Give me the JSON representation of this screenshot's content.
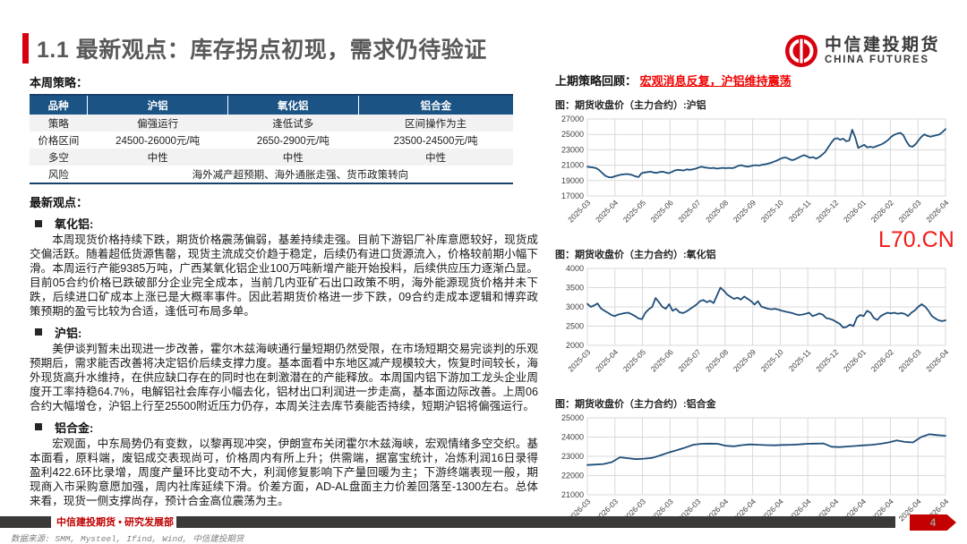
{
  "page": {
    "title": "1.1 最新观点：库存拐点初现，需求仍待验证",
    "watermark": "L70.CN"
  },
  "logo": {
    "name_cn": "中信建投期货",
    "name_en": "CHINA FUTURES",
    "brand_red": "#d7000f"
  },
  "strategy": {
    "label": "本周策略：",
    "table": {
      "headers": [
        "品种",
        "沪铝",
        "氧化铝",
        "铝合金"
      ],
      "rows": [
        [
          "策略",
          "偏强运行",
          "逢低试多",
          "区间操作为主"
        ],
        [
          "价格区间",
          "24500-26000元/吨",
          "2650-2900元/吨",
          "23500-24500元/吨"
        ],
        [
          "多空",
          "中性",
          "中性",
          "中性"
        ]
      ],
      "risk_label": "风险",
      "risk_value": "海外减产超预期、海外通胀走强、货币政策转向",
      "header_bg": "#1b5384"
    }
  },
  "views": {
    "label": "最新观点：",
    "sections": [
      {
        "title": "氧化铝:",
        "body": "本周现货价格持续下跌，期货价格震荡偏弱，基差持续走强。目前下游铝厂补库意愿较好，现货成交偏活跃。随着超低货源售罄，现货主流成交价趋于稳定，后续仍有进口货源流入，价格较前期小幅下滑。本周运行产能9385万吨，广西某氧化铝企业100万吨新增产能开始投料，后续供应压力逐渐凸显。目前05合约价格已跌破部分企业完全成本，当前几内亚矿石出口政策不明，海外能源现货价格并未下跌，后续进口矿成本上涨已是大概率事件。因此若期货价格进一步下跌，09合约走成本逻辑和博弈政策预期的盈亏比较为合适，逢低可布局多单。"
      },
      {
        "title": "沪铝:",
        "body": "美伊谈判暂未出现进一步改善，霍尔木兹海峡通行量短期仍然受限，在市场短期交易完谈判的乐观预期后，需求能否改善将决定铝价后续支撑力度。基本面看中东地区减产规模较大，恢复时间较长，海外现货高升水维持，在供应缺口存在的同时也在刺激潜在的产能释放。本周国内铝下游加工龙头企业周度开工率持稳64.7%，电解铝社会库存小幅去化，铝材出口利润进一步走高，基本面边际改善。上周06合约大幅增仓，沪铝上行至25500附近压力仍存，本周关注去库节奏能否持续，短期沪铝将偏强运行。"
      },
      {
        "title": "铝合金:",
        "body": "宏观面，中东局势仍有变数，以黎再现冲突，伊朗宣布关闭霍尔木兹海峡，宏观情绪多空交织。基本面看，原料端，废铝成交表现尚可，价格周内有所上升；供需端，据富宝统计，冶炼利润16日录得盈利422.6环比录增，周度产量环比变动不大，利润修复影响下产量回暖为主；下游终端表现一般，期现商入市采购意愿加强，周内社库延续下滑。价差方面，AD-AL盘面主力价差回落至-1300左右。总体来看，现货一侧支撑尚存，预计合金高位震荡为主。"
      }
    ]
  },
  "review": {
    "label": "上期策略回顾：",
    "highlight": "宏观消息反复，沪铝维持震荡"
  },
  "chart_data": [
    {
      "type": "line",
      "title": "图：期货收盘价（主力合约）:沪铝",
      "ylim": [
        17000,
        27000
      ],
      "ystep": 2000,
      "categories": [
        "2025-03",
        "2025-04",
        "2025-05",
        "2025-06",
        "2025-07",
        "2025-08",
        "2025-09",
        "2025-10",
        "2025-11",
        "2025-12",
        "2026-01",
        "2026-02",
        "2026-03",
        "2026-04"
      ],
      "line_color": "#1f4e79",
      "grid": true,
      "values": [
        20800,
        20750,
        20700,
        20600,
        20350,
        19950,
        19600,
        19450,
        19400,
        19550,
        19650,
        19750,
        19800,
        19850,
        19800,
        19700,
        19550,
        19450,
        19950,
        20050,
        20100,
        20150,
        20050,
        20000,
        20100,
        20150,
        20050,
        19950,
        20100,
        20300,
        20400,
        20350,
        20300,
        20450,
        20400,
        20450,
        20550,
        20700,
        20800,
        20700,
        20650,
        20600,
        20650,
        20550,
        20600,
        20650,
        20600,
        20650,
        20600,
        20700,
        20900,
        21000,
        20900,
        20800,
        20850,
        20950,
        21000,
        20950,
        21050,
        21100,
        21200,
        21300,
        21450,
        21600,
        21800,
        21950,
        22000,
        21800,
        21650,
        21750,
        21950,
        22150,
        22300,
        22150,
        21950,
        22050,
        21850,
        22050,
        22350,
        22700,
        23300,
        23900,
        24400,
        24500,
        24300,
        24450,
        24100,
        24200,
        25600,
        24600,
        23250,
        23450,
        23650,
        23300,
        23400,
        23300,
        23450,
        23600,
        23750,
        24000,
        24300,
        24700,
        24950,
        25100,
        25200,
        24900,
        24100,
        23500,
        23400,
        23700,
        24200,
        24700,
        25000,
        24800,
        24700,
        24800,
        24900,
        25000,
        25300,
        25700
      ]
    },
    {
      "type": "line",
      "title": "图：期货收盘价（主力合约）:氧化铝",
      "ylim": [
        2000,
        4000
      ],
      "ystep": 500,
      "categories": [
        "2025-03",
        "2025-04",
        "2025-05",
        "2025-06",
        "2025-07",
        "2025-08",
        "2025-09",
        "2025-10",
        "2025-11",
        "2025-12",
        "2026-01",
        "2026-02",
        "2026-03",
        "2026-04"
      ],
      "line_color": "#1f4e79",
      "grid": true,
      "values": [
        3080,
        3000,
        3040,
        3090,
        2960,
        2900,
        2850,
        2790,
        2760,
        2800,
        2820,
        2840,
        2850,
        2810,
        2760,
        2700,
        2680,
        2850,
        2940,
        3000,
        3230,
        3120,
        3000,
        2950,
        3070,
        2900,
        2950,
        2860,
        2840,
        2880,
        2940,
        3000,
        3060,
        3150,
        3180,
        3120,
        3160,
        3100,
        3300,
        3500,
        3420,
        3320,
        3260,
        3210,
        3240,
        3190,
        3270,
        3210,
        3150,
        3060,
        3150,
        3010,
        2980,
        2950,
        2940,
        2950,
        2930,
        2900,
        2880,
        2860,
        2840,
        2810,
        2790,
        2800,
        2820,
        2850,
        2760,
        2790,
        2830,
        2800,
        2710,
        2690,
        2660,
        2610,
        2560,
        2460,
        2480,
        2540,
        2500,
        2720,
        2790,
        2760,
        2900,
        2850,
        2710,
        2660,
        2760,
        2810,
        2850,
        2830,
        2850,
        2820,
        2840,
        2820,
        2760,
        2850,
        2910,
        3000,
        3070,
        3010,
        2900,
        2760,
        2700,
        2650,
        2630,
        2650
      ]
    },
    {
      "type": "line",
      "title": "图：期货收盘价（主力合约）:铝合金",
      "ylim": [
        21000,
        25000
      ],
      "ystep": 1000,
      "categories": [
        "2026-03",
        "2026-03",
        "2026-03",
        "2026-03",
        "2026-03",
        "2026-04",
        "2026-04",
        "2026-04",
        "2026-04",
        "2026-04",
        "2026-04",
        "2026-04",
        "2026-04",
        "2026-04"
      ],
      "line_color": "#1f4e79",
      "grid": true,
      "values": [
        22550,
        22570,
        22600,
        22700,
        22950,
        22900,
        22850,
        22880,
        22920,
        23050,
        23200,
        23320,
        23450,
        23600,
        23650,
        23660,
        23650,
        23550,
        23520,
        23580,
        23620,
        23600,
        23580,
        23570,
        23590,
        23600,
        23620,
        23650,
        23660,
        23670,
        23500,
        23480,
        23510,
        23540,
        23570,
        23600,
        23650,
        23720,
        23830,
        23750,
        23720,
        24000,
        24150,
        24100,
        24070
      ]
    }
  ],
  "footer": {
    "dept": "中信建投期货 • 研究发展部",
    "source": "数据来源: SMM, Mysteel, Ifind, Wind, 中信建投期货",
    "page_number": "4"
  }
}
